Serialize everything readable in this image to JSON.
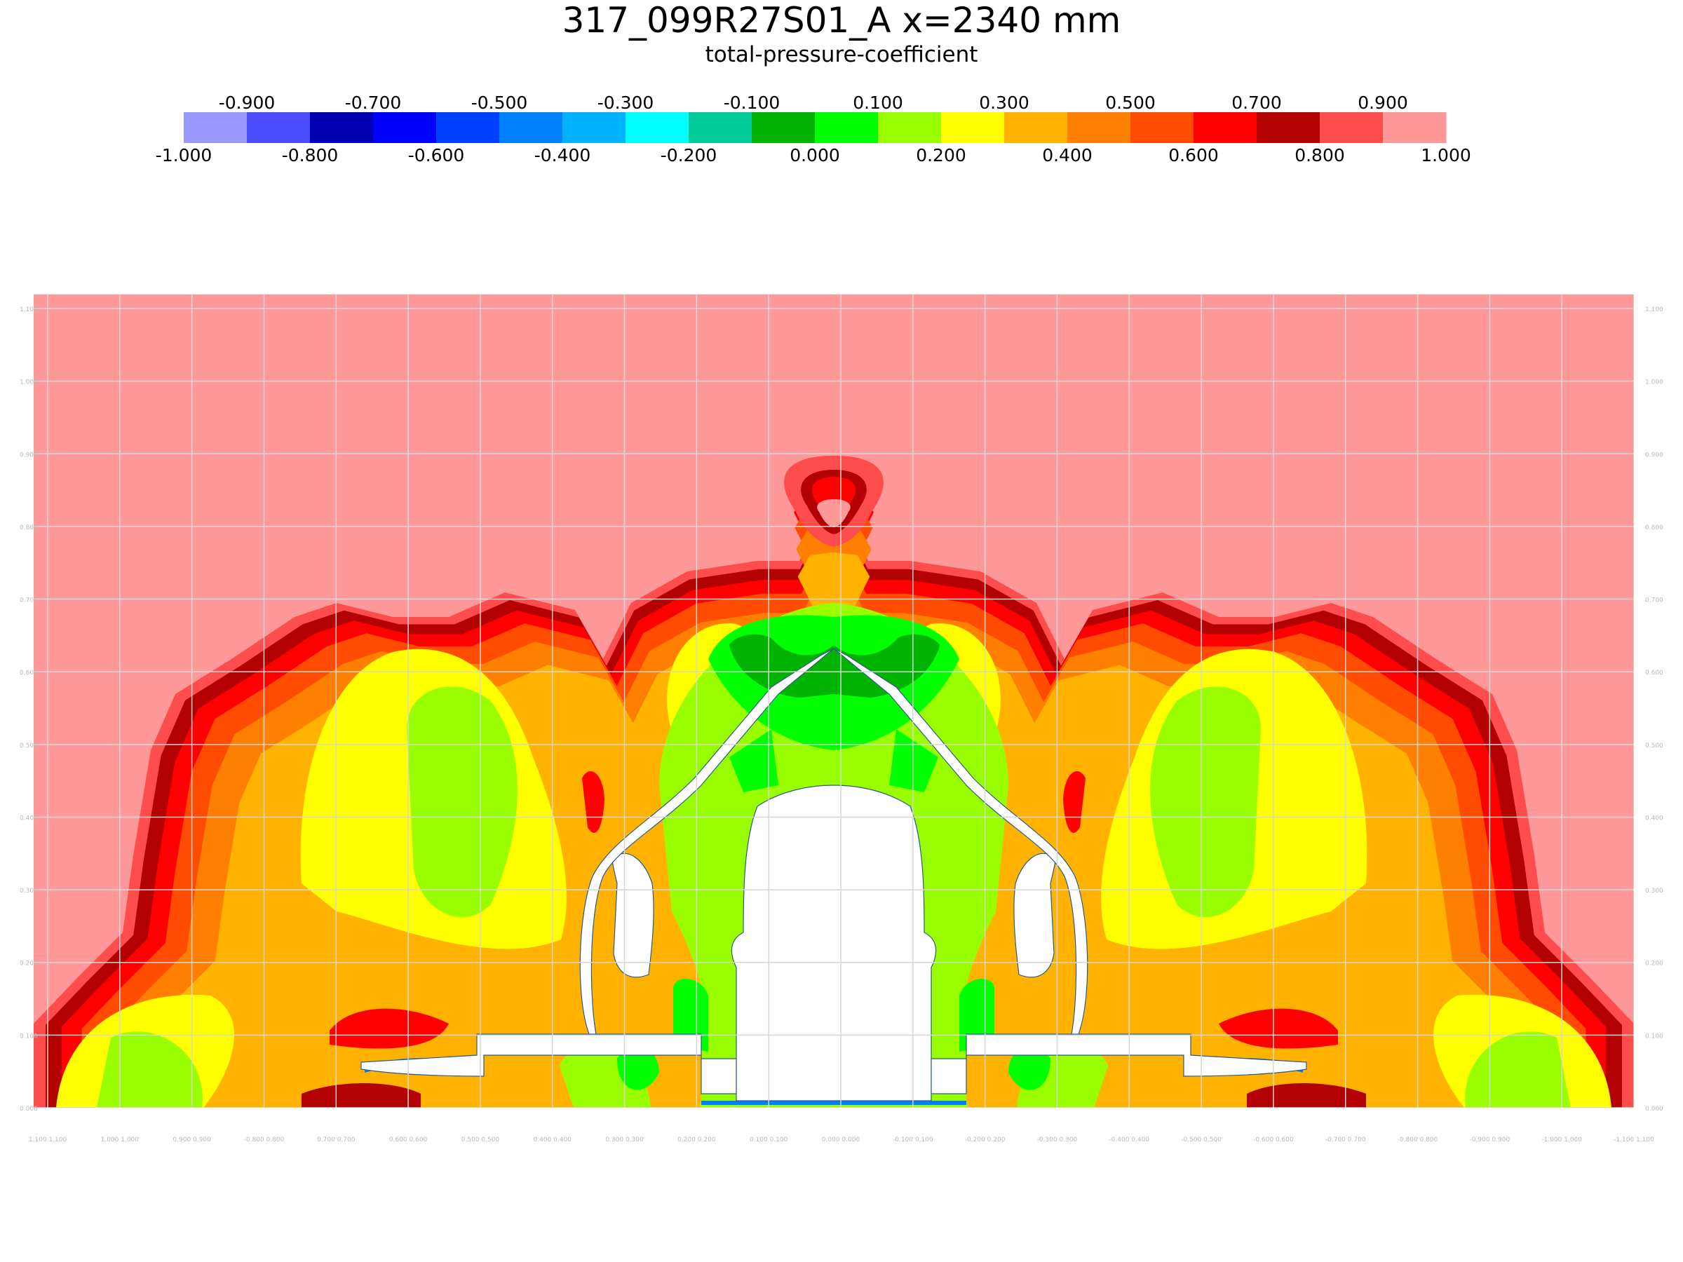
{
  "title": "317_099R27S01_A x=2340 mm",
  "subtitle": "total-pressure-coefficient",
  "chart_data": {
    "type": "heatmap",
    "variable": "total-pressure-coefficient",
    "colorbar": {
      "range": [
        -1.0,
        1.0
      ],
      "levels": [
        {
          "from": -1.0,
          "to": -0.9,
          "color": "#9999ff"
        },
        {
          "from": -0.9,
          "to": -0.8,
          "color": "#4c4cff"
        },
        {
          "from": -0.8,
          "to": -0.7,
          "color": "#0000b3"
        },
        {
          "from": -0.7,
          "to": -0.6,
          "color": "#0000ff"
        },
        {
          "from": -0.6,
          "to": -0.5,
          "color": "#0040ff"
        },
        {
          "from": -0.5,
          "to": -0.4,
          "color": "#0080ff"
        },
        {
          "from": -0.4,
          "to": -0.3,
          "color": "#00b3ff"
        },
        {
          "from": -0.3,
          "to": -0.2,
          "color": "#00ffff"
        },
        {
          "from": -0.2,
          "to": -0.1,
          "color": "#00cc99"
        },
        {
          "from": -0.1,
          "to": 0.0,
          "color": "#00b300"
        },
        {
          "from": 0.0,
          "to": 0.1,
          "color": "#00ff00"
        },
        {
          "from": 0.1,
          "to": 0.2,
          "color": "#99ff00"
        },
        {
          "from": 0.2,
          "to": 0.3,
          "color": "#ffff00"
        },
        {
          "from": 0.3,
          "to": 0.4,
          "color": "#ffb300"
        },
        {
          "from": 0.4,
          "to": 0.5,
          "color": "#ff8000"
        },
        {
          "from": 0.5,
          "to": 0.6,
          "color": "#ff4c00"
        },
        {
          "from": 0.6,
          "to": 0.7,
          "color": "#ff0000"
        },
        {
          "from": 0.7,
          "to": 0.8,
          "color": "#b30000"
        },
        {
          "from": 0.8,
          "to": 0.9,
          "color": "#ff4c4c"
        },
        {
          "from": 0.9,
          "to": 1.0,
          "color": "#ff9999"
        }
      ],
      "top_labels": [
        "-0.900",
        "-0.700",
        "-0.500",
        "-0.300",
        "-0.100",
        "0.100",
        "0.300",
        "0.500",
        "0.700",
        "0.900"
      ],
      "bottom_labels": [
        "-1.000",
        "-0.800",
        "-0.600",
        "-0.400",
        "-0.200",
        "0.000",
        "0.200",
        "0.400",
        "0.600",
        "0.800",
        "1.000"
      ]
    },
    "x_ticks": [
      "1.100 1.100",
      "1.000 1.000",
      "0.900 0.900",
      "-0.800 0.800",
      "0.700 0.700",
      "0.600 0.600",
      "0.500 0.500",
      "0.400 0.400",
      "0.300 0.300",
      "0.200 0.200",
      "0.100 0.100",
      "0.000 0.000",
      "-0.100 0.100",
      "-0.200 0.200",
      "-0.300 0.300",
      "-0.400 0.400",
      "-0.500 0.500",
      "-0.600 0.600",
      "-0.700 0.700",
      "-0.800 0.800",
      "-0.900 0.900",
      "-1.000 1.000",
      "-1.100 1.100"
    ],
    "y_ticks": [
      "0.000",
      "0.100",
      "0.200",
      "0.300",
      "0.400",
      "0.500",
      "0.600",
      "0.700",
      "0.800",
      "0.900",
      "1.000",
      "1.100"
    ],
    "grid": true,
    "freestream_level_color": "#ff9999"
  }
}
